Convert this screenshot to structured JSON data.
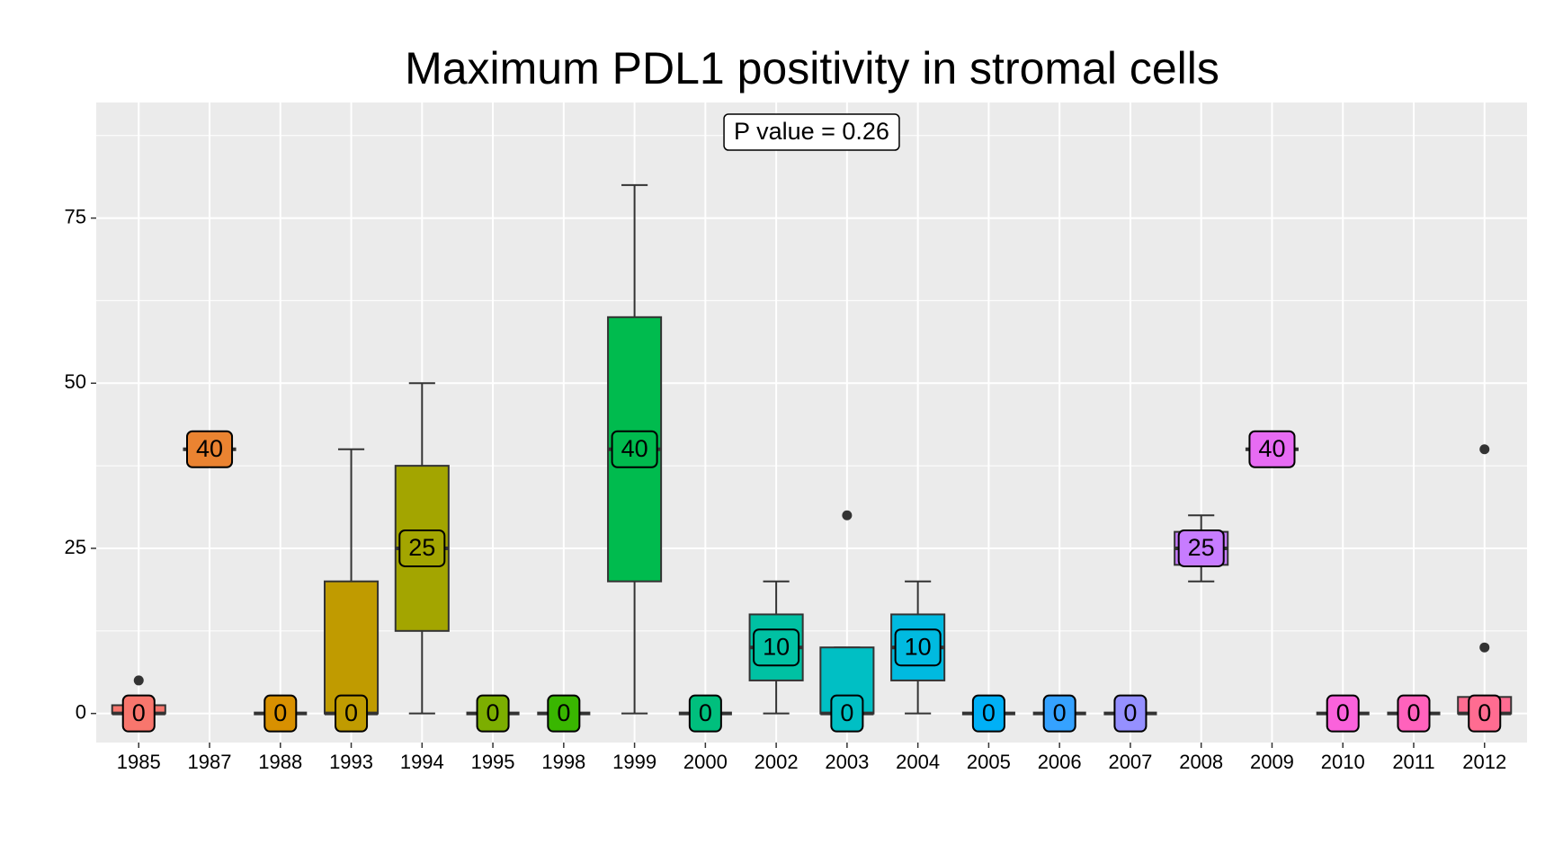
{
  "chart_data": {
    "type": "boxplot",
    "title": "Maximum PDL1 positivity in stromal cells",
    "annotation": "P value = 0.26",
    "categories": [
      "1985",
      "1987",
      "1988",
      "1993",
      "1994",
      "1995",
      "1998",
      "1999",
      "2000",
      "2002",
      "2003",
      "2004",
      "2005",
      "2006",
      "2007",
      "2008",
      "2009",
      "2010",
      "2011",
      "2012"
    ],
    "colors": [
      "#F8766D",
      "#EA8331",
      "#D89000",
      "#C09B00",
      "#A3A500",
      "#7CAE00",
      "#39B600",
      "#00BB4E",
      "#00BF7D",
      "#00C1A3",
      "#00BFC4",
      "#00BAE0",
      "#00B0F6",
      "#35A2FF",
      "#9590FF",
      "#C77CFF",
      "#E76BF3",
      "#FA62DB",
      "#FF62BC",
      "#FF6C91"
    ],
    "boxes": [
      {
        "min": 0,
        "q1": 0,
        "median": 0,
        "q3": 1.25,
        "max": 1.25,
        "outliers": [
          5
        ]
      },
      {
        "min": 40,
        "q1": 40,
        "median": 40,
        "q3": 40,
        "max": 40,
        "outliers": []
      },
      {
        "min": 0,
        "q1": 0,
        "median": 0,
        "q3": 0,
        "max": 0,
        "outliers": []
      },
      {
        "min": 0,
        "q1": 0,
        "median": 0,
        "q3": 20,
        "max": 40,
        "outliers": []
      },
      {
        "min": 0,
        "q1": 12.5,
        "median": 25,
        "q3": 37.5,
        "max": 50,
        "outliers": []
      },
      {
        "min": 0,
        "q1": 0,
        "median": 0,
        "q3": 0,
        "max": 0,
        "outliers": []
      },
      {
        "min": 0,
        "q1": 0,
        "median": 0,
        "q3": 0,
        "max": 0,
        "outliers": []
      },
      {
        "min": 0,
        "q1": 20,
        "median": 40,
        "q3": 60,
        "max": 80,
        "outliers": []
      },
      {
        "min": 0,
        "q1": 0,
        "median": 0,
        "q3": 0,
        "max": 0,
        "outliers": []
      },
      {
        "min": 0,
        "q1": 5,
        "median": 10,
        "q3": 15,
        "max": 20,
        "outliers": []
      },
      {
        "min": 0,
        "q1": 0,
        "median": 0,
        "q3": 10,
        "max": 10,
        "outliers": [
          30
        ]
      },
      {
        "min": 0,
        "q1": 5,
        "median": 10,
        "q3": 15,
        "max": 20,
        "outliers": []
      },
      {
        "min": 0,
        "q1": 0,
        "median": 0,
        "q3": 0,
        "max": 0,
        "outliers": []
      },
      {
        "min": 0,
        "q1": 0,
        "median": 0,
        "q3": 0,
        "max": 0,
        "outliers": []
      },
      {
        "min": 0,
        "q1": 0,
        "median": 0,
        "q3": 0,
        "max": 0,
        "outliers": []
      },
      {
        "min": 20,
        "q1": 22.5,
        "median": 25,
        "q3": 27.5,
        "max": 30,
        "outliers": []
      },
      {
        "min": 40,
        "q1": 40,
        "median": 40,
        "q3": 40,
        "max": 40,
        "outliers": []
      },
      {
        "min": 0,
        "q1": 0,
        "median": 0,
        "q3": 0,
        "max": 0,
        "outliers": []
      },
      {
        "min": 0,
        "q1": 0,
        "median": 0,
        "q3": 0,
        "max": 0,
        "outliers": []
      },
      {
        "min": 0,
        "q1": 0,
        "median": 0,
        "q3": 2.5,
        "max": 2.5,
        "outliers": [
          10,
          40
        ]
      }
    ],
    "ylim": [
      -4.4,
      92.5
    ],
    "yticks": [
      0,
      25,
      50,
      75
    ],
    "grid": true
  }
}
